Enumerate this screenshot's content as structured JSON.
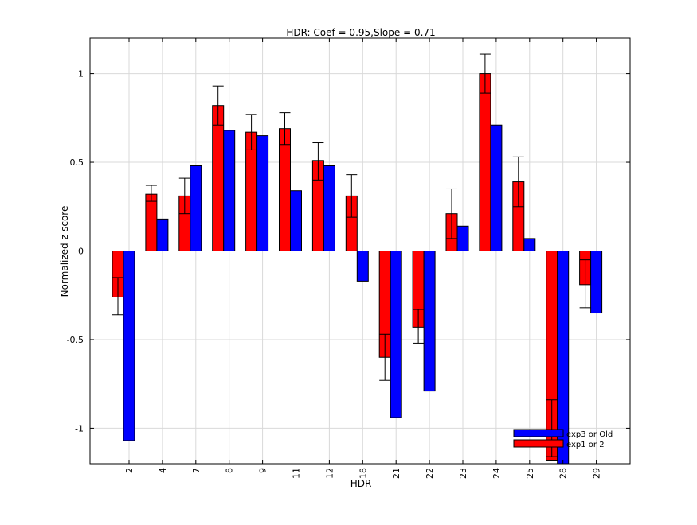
{
  "chart_data": {
    "type": "bar",
    "title": "HDR: Coef = 0.95,Slope = 0.71",
    "xlabel": "HDR",
    "ylabel": "Normalized z-score",
    "categories": [
      "2",
      "4",
      "7",
      "8",
      "9",
      "11",
      "12",
      "18",
      "21",
      "22",
      "23",
      "24",
      "25",
      "28",
      "29"
    ],
    "series": [
      {
        "name": "exp1 or 2",
        "color": "#ff0000",
        "values": [
          -0.26,
          0.32,
          0.31,
          0.82,
          0.67,
          0.69,
          0.51,
          0.31,
          -0.6,
          -0.43,
          0.21,
          1.0,
          0.39,
          -1.18,
          -0.19
        ],
        "error_low": [
          -0.36,
          0.28,
          0.21,
          0.71,
          0.57,
          0.6,
          0.4,
          0.19,
          -0.73,
          -0.52,
          0.07,
          0.89,
          0.25,
          -1.16,
          -0.32
        ],
        "error_high": [
          -0.15,
          0.37,
          0.41,
          0.93,
          0.77,
          0.78,
          0.61,
          0.43,
          -0.47,
          -0.33,
          0.35,
          1.11,
          0.53,
          -0.84,
          -0.05
        ]
      },
      {
        "name": "exp3 or Old",
        "color": "#0000ff",
        "values": [
          -1.07,
          0.18,
          0.48,
          0.68,
          0.65,
          0.34,
          0.48,
          -0.17,
          -0.94,
          -0.79,
          0.14,
          0.71,
          0.07,
          -1.22,
          -0.35
        ]
      }
    ],
    "legend": {
      "position": "bottom-right",
      "entries": [
        "exp3 or Old",
        "exp1 or 2"
      ]
    },
    "ylim": [
      -1.2,
      1.2
    ],
    "yticks": [
      -1,
      -0.5,
      0,
      0.5,
      1
    ],
    "ytick_labels": [
      "-1",
      "-0.5",
      "0",
      "0.5",
      "1"
    ],
    "grid": true
  }
}
